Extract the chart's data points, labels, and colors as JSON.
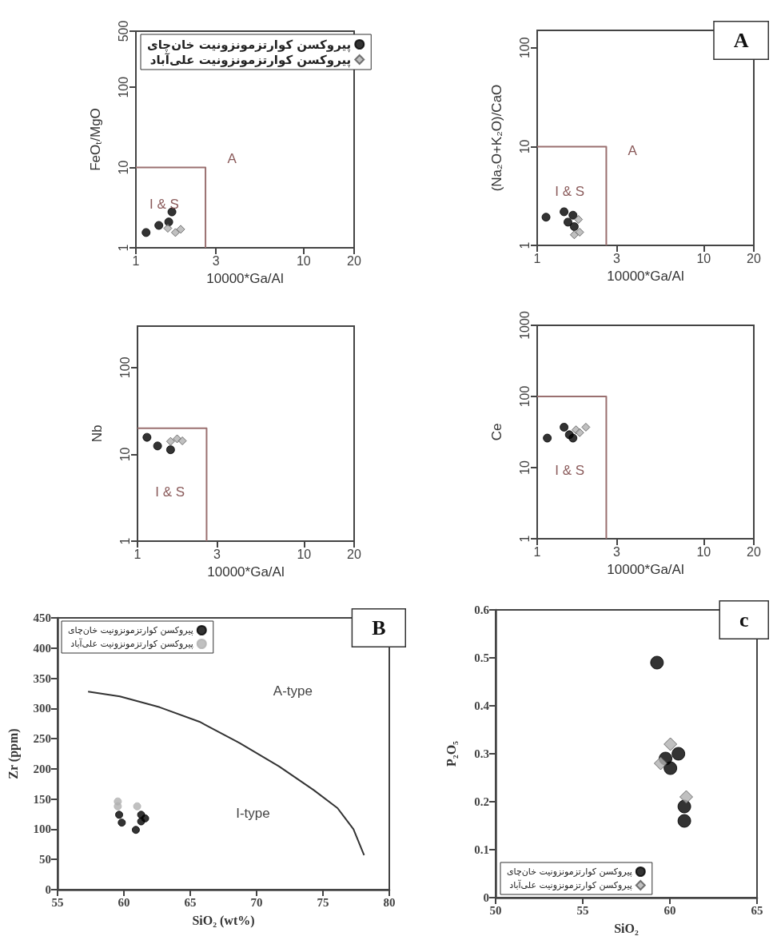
{
  "chart_data": [
    {
      "type": "scatter",
      "xlabel": "10000*Ga/Al",
      "ylabel": "FeOₜ/MgO",
      "log": "xy",
      "xlim": [
        1,
        20
      ],
      "ylim": [
        1,
        500
      ],
      "xticks": [
        1,
        3,
        10,
        20
      ],
      "yticks": [
        1,
        10,
        100,
        500
      ],
      "legend": "top",
      "series": [
        {
          "type": "line",
          "marker": "none",
          "color": "#9a7070",
          "x": [
            1,
            2.6,
            2.6
          ],
          "values": [
            10,
            10,
            1
          ]
        },
        {
          "name": "پیروکسن کوارتزمونزونیت خان‌چای",
          "color": "#000000",
          "marker": "circle",
          "x": [
            1.15,
            1.37,
            1.57,
            1.64
          ],
          "values": [
            1.55,
            1.9,
            2.1,
            2.8
          ]
        },
        {
          "name": "پیروکسن کوارتزمونزونیت علی‌آباد",
          "color": "#b0b0b0",
          "marker": "diamond",
          "x": [
            1.55,
            1.72,
            1.85
          ],
          "values": [
            1.75,
            1.55,
            1.7
          ]
        }
      ],
      "annotations": [
        "A",
        "I & S"
      ]
    },
    {
      "type": "scatter",
      "xlabel": "10000*Ga/Al",
      "title": "A",
      "ylabel": "(Na₂O+K₂O)/CaO",
      "log": "xy",
      "xlim": [
        1,
        20
      ],
      "ylim": [
        1,
        150
      ],
      "xticks": [
        1,
        3,
        10,
        20
      ],
      "yticks": [
        1,
        10,
        100
      ],
      "series": [
        {
          "type": "line",
          "marker": "none",
          "color": "#9a7070",
          "x": [
            1,
            2.6,
            2.6
          ],
          "values": [
            10,
            10,
            1
          ]
        },
        {
          "color": "#000000",
          "marker": "circle",
          "x": [
            1.13,
            1.45,
            1.53,
            1.64,
            1.67
          ],
          "values": [
            1.93,
            2.19,
            1.72,
            2.02,
            1.55
          ]
        },
        {
          "color": "#b0b0b0",
          "marker": "diamond",
          "x": [
            1.67,
            1.77,
            1.8
          ],
          "values": [
            1.28,
            1.83,
            1.36
          ]
        }
      ],
      "annotations": [
        "A",
        "I & S"
      ]
    },
    {
      "type": "scatter",
      "xlabel": "10000*Ga/Al",
      "ylabel": "Nb",
      "log": "xy",
      "xlim": [
        1,
        20
      ],
      "ylim": [
        1,
        300
      ],
      "xticks": [
        1,
        3,
        10,
        20
      ],
      "yticks": [
        1,
        10,
        100
      ],
      "series": [
        {
          "type": "line",
          "marker": "none",
          "color": "#9a7070",
          "x": [
            1,
            2.6,
            2.6
          ],
          "values": [
            20,
            20,
            1
          ]
        },
        {
          "color": "#000000",
          "marker": "circle",
          "x": [
            1.14,
            1.32,
            1.58
          ],
          "values": [
            15.7,
            12.5,
            11.3
          ]
        },
        {
          "color": "#b0b0b0",
          "marker": "diamond",
          "x": [
            1.58,
            1.73,
            1.86
          ],
          "values": [
            14.1,
            15.1,
            14.3
          ]
        }
      ],
      "annotations": [
        "I & S"
      ]
    },
    {
      "type": "scatter",
      "xlabel": "10000*Ga/Al",
      "ylabel": "Ce",
      "log": "xy",
      "xlim": [
        1,
        20
      ],
      "ylim": [
        1,
        1000
      ],
      "xticks": [
        1,
        3,
        10,
        20
      ],
      "yticks": [
        1,
        10,
        100,
        1000
      ],
      "series": [
        {
          "type": "line",
          "marker": "none",
          "color": "#9a7070",
          "x": [
            1,
            2.6,
            2.6
          ],
          "values": [
            100,
            100,
            1
          ]
        },
        {
          "color": "#000000",
          "marker": "circle",
          "x": [
            1.15,
            1.45,
            1.56,
            1.64
          ],
          "values": [
            26,
            37,
            29,
            26
          ]
        },
        {
          "color": "#b0b0b0",
          "marker": "diamond",
          "x": [
            1.71,
            1.8,
            1.96
          ],
          "values": [
            34,
            31,
            37
          ]
        }
      ],
      "annotations": [
        "I & S"
      ]
    },
    {
      "type": "scatter",
      "title": "B",
      "xlabel": "SiO₂ (wt%)",
      "ylabel": "Zr (ppm)",
      "xlim": [
        55,
        80
      ],
      "ylim": [
        0,
        450
      ],
      "xticks": [
        55,
        60,
        65,
        70,
        75,
        80
      ],
      "yticks": [
        0,
        50,
        100,
        150,
        200,
        250,
        300,
        350,
        400,
        450
      ],
      "legend": "top left",
      "series": [
        {
          "type": "line",
          "marker": "none",
          "color": "#333333",
          "x": [
            57.3,
            59.7,
            62.7,
            65.7,
            68.7,
            71.7,
            74.3,
            76.1,
            77.3,
            78.1
          ],
          "values": [
            328,
            320,
            302,
            278,
            243,
            204,
            165,
            135,
            100,
            57
          ]
        },
        {
          "name": "پیروکسن کوارتزمونزونیت خان‌چای",
          "color": "#000000",
          "marker": "circle",
          "x": [
            59.64,
            59.84,
            60.9,
            61.3,
            61.3,
            61.6
          ],
          "values": [
            124,
            111,
            99,
            124,
            113,
            118
          ]
        },
        {
          "name": "پیروکسن کوارتزمونزونیت علی‌آباد",
          "color": "#b0b0b0",
          "marker": "circle",
          "x": [
            59.54,
            59.54,
            61.0
          ],
          "values": [
            146,
            138,
            138
          ]
        }
      ],
      "annotations": [
        "A-type",
        "I-type"
      ]
    },
    {
      "type": "scatter",
      "title": "c",
      "xlabel": "SiO₂",
      "ylabel": "P₂O₅",
      "xlim": [
        50,
        65
      ],
      "ylim": [
        0,
        0.6
      ],
      "xticks": [
        50,
        55,
        60,
        65
      ],
      "yticks": [
        0,
        0.1,
        0.2,
        0.3,
        0.4,
        0.5,
        0.6
      ],
      "legend": "bottom left",
      "series": [
        {
          "name": "پیروکسن کوارتزمونزونیت خان‌چای",
          "color": "#000000",
          "marker": "circle",
          "x": [
            59.26,
            59.75,
            60.03,
            60.49,
            60.83,
            60.83
          ],
          "values": [
            0.49,
            0.29,
            0.27,
            0.3,
            0.19,
            0.16
          ]
        },
        {
          "name": "پیروکسن کوارتزمونزونیت علی‌آباد",
          "color": "#b0b0b0",
          "marker": "diamond",
          "x": [
            59.47,
            60.03,
            60.94
          ],
          "values": [
            0.28,
            0.32,
            0.21
          ]
        }
      ],
      "grid": false
    }
  ]
}
